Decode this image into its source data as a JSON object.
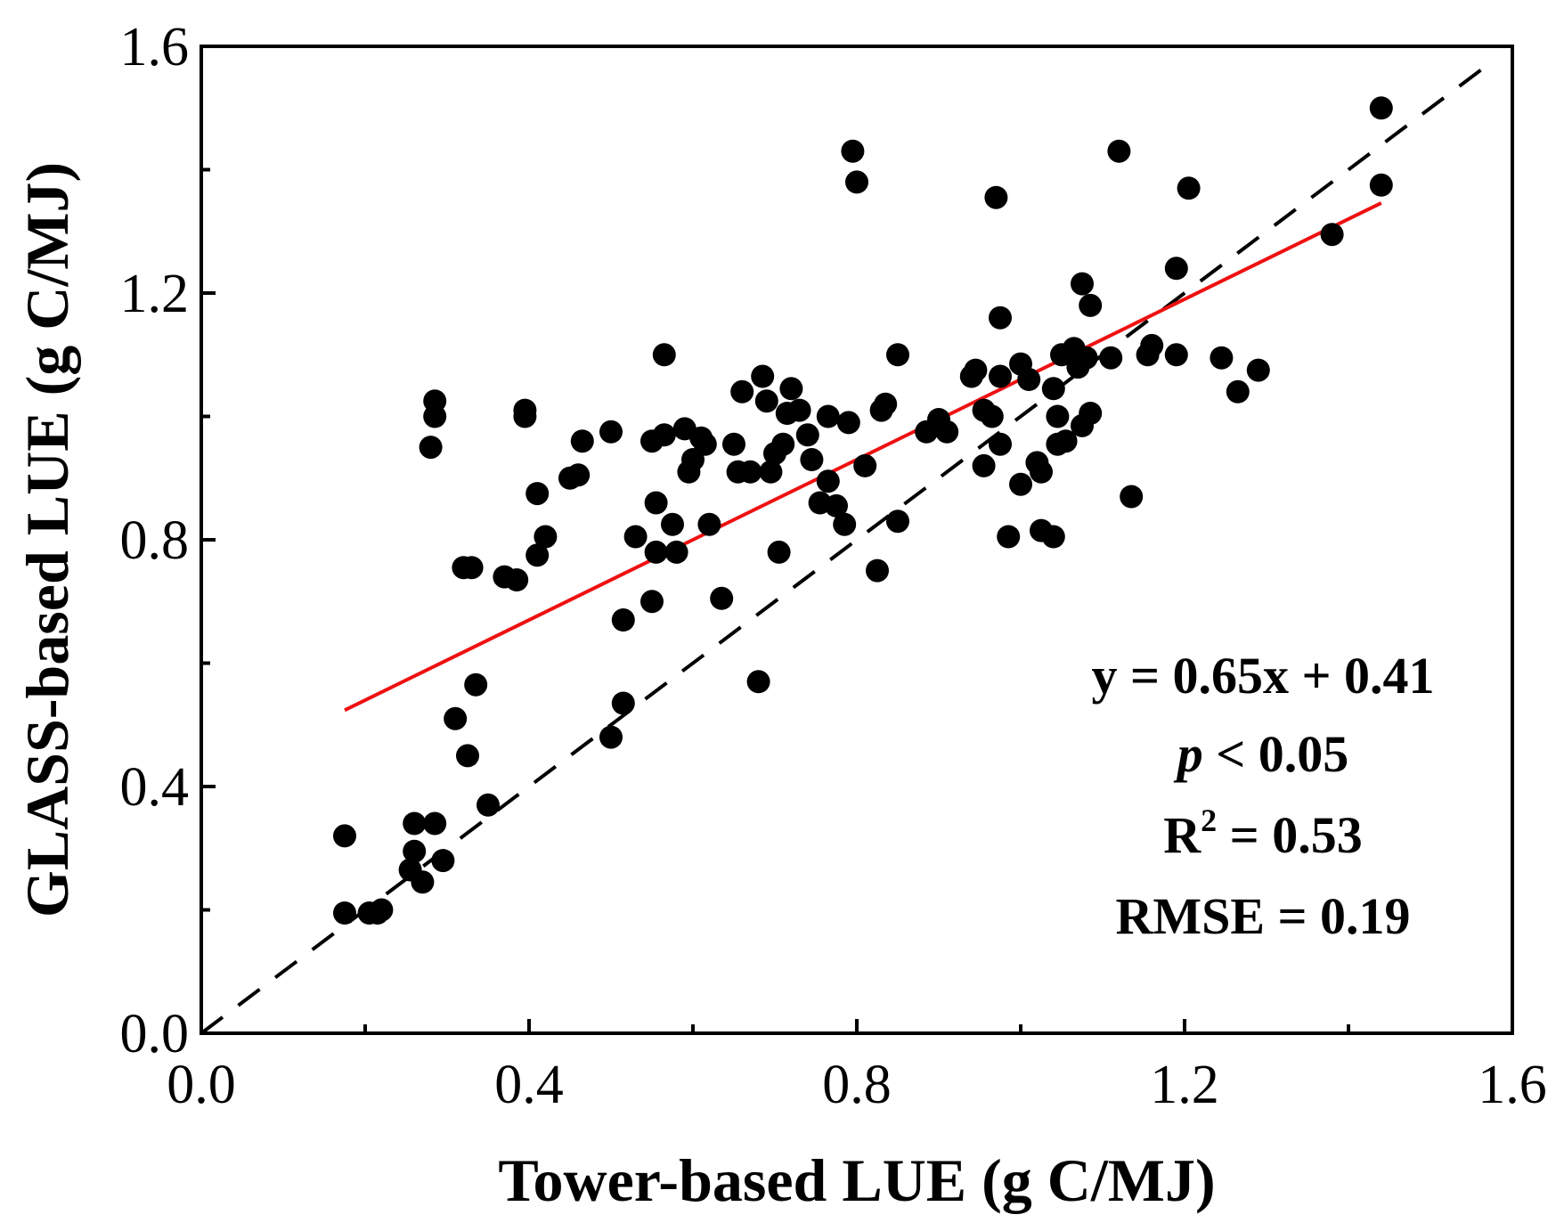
{
  "chart_data": {
    "type": "scatter",
    "xlabel": "Tower-based LUE (g C/MJ)",
    "ylabel": "GLASS-based LUE (g C/MJ)",
    "xlim": [
      0,
      1.6
    ],
    "ylim": [
      0,
      1.6
    ],
    "x_ticks": [
      "0.0",
      "0.4",
      "0.8",
      "1.2",
      "1.6"
    ],
    "y_ticks": [
      "0.0",
      "0.4",
      "0.8",
      "1.2",
      "1.6"
    ],
    "grid": false,
    "series": [
      {
        "name": "Sites",
        "color": "#000000",
        "points": [
          [
            0.175,
            0.32
          ],
          [
            0.175,
            0.195
          ],
          [
            0.205,
            0.195
          ],
          [
            0.215,
            0.195
          ],
          [
            0.22,
            0.2
          ],
          [
            0.255,
            0.265
          ],
          [
            0.26,
            0.295
          ],
          [
            0.26,
            0.34
          ],
          [
            0.27,
            0.245
          ],
          [
            0.285,
            0.34
          ],
          [
            0.28,
            0.95
          ],
          [
            0.285,
            1.0
          ],
          [
            0.285,
            1.025
          ],
          [
            0.295,
            0.28
          ],
          [
            0.31,
            0.51
          ],
          [
            0.32,
            0.755
          ],
          [
            0.33,
            0.755
          ],
          [
            0.325,
            0.45
          ],
          [
            0.335,
            0.565
          ],
          [
            0.35,
            0.37
          ],
          [
            0.37,
            0.74
          ],
          [
            0.385,
            0.735
          ],
          [
            0.395,
            1.0
          ],
          [
            0.395,
            1.01
          ],
          [
            0.41,
            0.875
          ],
          [
            0.41,
            0.775
          ],
          [
            0.42,
            0.805
          ],
          [
            0.45,
            0.9
          ],
          [
            0.46,
            0.905
          ],
          [
            0.465,
            0.96
          ],
          [
            0.5,
            0.975
          ],
          [
            0.5,
            0.48
          ],
          [
            0.515,
            0.535
          ],
          [
            0.515,
            0.67
          ],
          [
            0.53,
            0.805
          ],
          [
            0.55,
            0.96
          ],
          [
            0.55,
            0.7
          ],
          [
            0.555,
            0.78
          ],
          [
            0.555,
            0.86
          ],
          [
            0.565,
            0.97
          ],
          [
            0.565,
            1.1
          ],
          [
            0.575,
            0.825
          ],
          [
            0.58,
            0.78
          ],
          [
            0.59,
            0.98
          ],
          [
            0.595,
            0.91
          ],
          [
            0.6,
            0.93
          ],
          [
            0.61,
            0.965
          ],
          [
            0.615,
            0.955
          ],
          [
            0.62,
            0.825
          ],
          [
            0.635,
            0.705
          ],
          [
            0.65,
            0.955
          ],
          [
            0.655,
            0.91
          ],
          [
            0.66,
            1.04
          ],
          [
            0.67,
            0.91
          ],
          [
            0.68,
            0.57
          ],
          [
            0.685,
            1.065
          ],
          [
            0.69,
            1.025
          ],
          [
            0.695,
            0.91
          ],
          [
            0.7,
            0.94
          ],
          [
            0.705,
            0.78
          ],
          [
            0.71,
            0.955
          ],
          [
            0.715,
            1.005
          ],
          [
            0.72,
            1.045
          ],
          [
            0.73,
            1.01
          ],
          [
            0.74,
            0.97
          ],
          [
            0.745,
            0.93
          ],
          [
            0.755,
            0.86
          ],
          [
            0.765,
            1.0
          ],
          [
            0.765,
            0.895
          ],
          [
            0.775,
            0.855
          ],
          [
            0.785,
            0.825
          ],
          [
            0.79,
            0.99
          ],
          [
            0.795,
            1.43
          ],
          [
            0.8,
            1.38
          ],
          [
            0.81,
            0.92
          ],
          [
            0.825,
            0.75
          ],
          [
            0.83,
            1.01
          ],
          [
            0.835,
            1.02
          ],
          [
            0.85,
            1.1
          ],
          [
            0.85,
            0.83
          ],
          [
            0.885,
            0.975
          ],
          [
            0.9,
            0.995
          ],
          [
            0.91,
            0.975
          ],
          [
            0.94,
            1.065
          ],
          [
            0.945,
            1.075
          ],
          [
            0.955,
            1.01
          ],
          [
            0.955,
            0.92
          ],
          [
            0.965,
            1.0
          ],
          [
            0.97,
            1.355
          ],
          [
            0.975,
            1.16
          ],
          [
            0.975,
            1.065
          ],
          [
            0.975,
            0.955
          ],
          [
            0.985,
            0.805
          ],
          [
            1.0,
            1.085
          ],
          [
            1.0,
            0.89
          ],
          [
            1.01,
            1.06
          ],
          [
            1.02,
            0.925
          ],
          [
            1.025,
            0.91
          ],
          [
            1.025,
            0.815
          ],
          [
            1.04,
            1.045
          ],
          [
            1.04,
            0.805
          ],
          [
            1.045,
            1.0
          ],
          [
            1.045,
            0.955
          ],
          [
            1.05,
            1.1
          ],
          [
            1.055,
            0.96
          ],
          [
            1.065,
            1.11
          ],
          [
            1.07,
            1.08
          ],
          [
            1.075,
            1.215
          ],
          [
            1.075,
            0.985
          ],
          [
            1.08,
            1.095
          ],
          [
            1.085,
            1.18
          ],
          [
            1.085,
            1.005
          ],
          [
            1.11,
            1.095
          ],
          [
            1.12,
            1.43
          ],
          [
            1.135,
            0.87
          ],
          [
            1.155,
            1.1
          ],
          [
            1.16,
            1.115
          ],
          [
            1.19,
            1.1
          ],
          [
            1.19,
            1.24
          ],
          [
            1.205,
            1.37
          ],
          [
            1.245,
            1.095
          ],
          [
            1.265,
            1.04
          ],
          [
            1.29,
            1.075
          ],
          [
            1.38,
            1.295
          ],
          [
            1.44,
            1.5
          ],
          [
            1.44,
            1.375
          ]
        ]
      }
    ],
    "fit_line": {
      "name": "Linear fit",
      "slope": 0.65,
      "intercept": 0.41,
      "x_range": [
        0.175,
        1.44
      ],
      "color": "#ee1111"
    },
    "reference_line": {
      "name": "1:1 line",
      "slope": 1,
      "intercept": 0,
      "x_range": [
        0,
        1.58
      ],
      "color": "#000000",
      "style": "dashed"
    },
    "annotations": {
      "equation": "y = 0.65x + 0.41",
      "p_symbol": "p",
      "p_rest": " < 0.05",
      "r2_base": "R",
      "r2_sup": "2",
      "r2_rest": " = 0.53",
      "rmse": "RMSE = 0.19",
      "placement": "bottom-right"
    }
  }
}
